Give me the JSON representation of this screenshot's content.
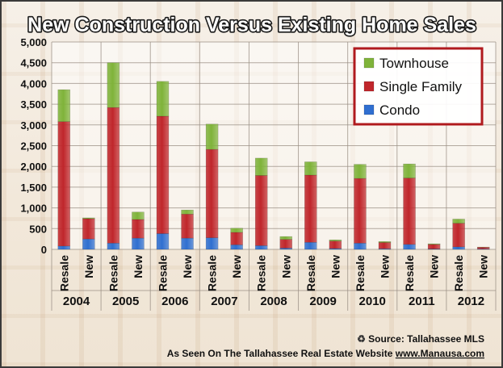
{
  "chart_data": {
    "type": "bar",
    "stacked": true,
    "title": "New Construction Versus Existing Home Sales",
    "years": [
      "2004",
      "2005",
      "2006",
      "2007",
      "2008",
      "2009",
      "2010",
      "2011",
      "2012"
    ],
    "categories": [
      "Resale",
      "New",
      "Resale",
      "New",
      "Resale",
      "New",
      "Resale",
      "New",
      "Resale",
      "New",
      "Resale",
      "New",
      "Resale",
      "New",
      "Resale",
      "New",
      "Resale",
      "New"
    ],
    "series": [
      {
        "name": "Condo",
        "color": "#2f6fd0",
        "values": [
          80,
          250,
          150,
          270,
          380,
          270,
          280,
          110,
          90,
          30,
          170,
          20,
          150,
          15,
          120,
          10,
          60,
          10
        ]
      },
      {
        "name": "Single Family",
        "color": "#c0262b",
        "values": [
          3000,
          490,
          3270,
          450,
          2830,
          580,
          2130,
          300,
          1690,
          210,
          1620,
          180,
          1560,
          150,
          1600,
          110,
          570,
          40
        ]
      },
      {
        "name": "Townhouse",
        "color": "#7fb33a",
        "values": [
          770,
          20,
          1080,
          180,
          840,
          100,
          610,
          100,
          420,
          70,
          320,
          30,
          340,
          25,
          340,
          15,
          100,
          5
        ]
      }
    ],
    "y_ticks": [
      "0",
      "500",
      "1,000",
      "1,500",
      "2,000",
      "2,500",
      "3,000",
      "3,500",
      "4,000",
      "4,500",
      "5,000"
    ],
    "ylim": [
      0,
      5000
    ],
    "grid": true,
    "legend_position": "top-right"
  },
  "footer": {
    "source": "Source: Tallahassee MLS",
    "attribution_prefix": "As Seen On The Tallahassee Real Estate Website",
    "website": "www.Manausa.com"
  }
}
